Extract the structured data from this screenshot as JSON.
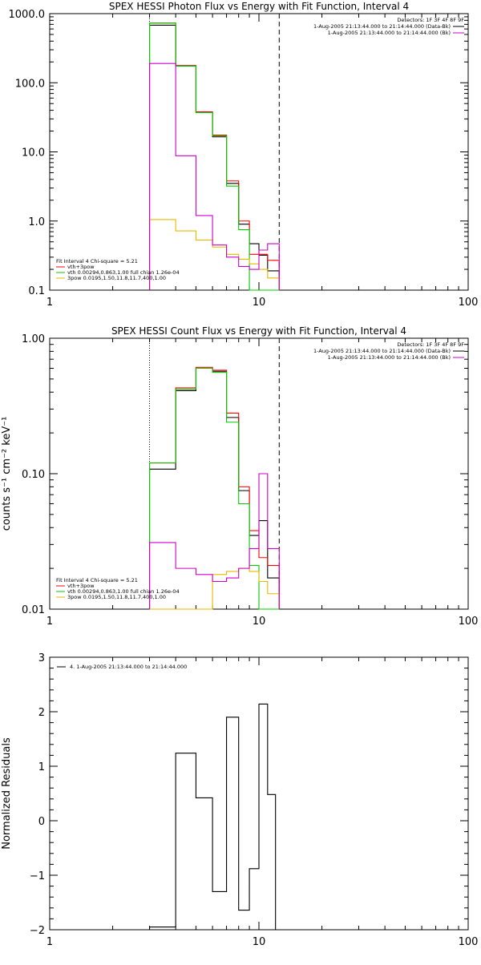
{
  "chart_data": [
    {
      "type": "line",
      "title": "SPEX HESSI Photon Flux vs Energy with Fit Function, Interval 4",
      "xlabel": "",
      "ylabel": "",
      "xscale": "log",
      "yscale": "log",
      "xlim": [
        1,
        100
      ],
      "ylim": [
        0.1,
        1000
      ],
      "xticks": [
        {
          "v": 1,
          "label": "1"
        },
        {
          "v": 10,
          "label": "10"
        },
        {
          "v": 100,
          "label": "100"
        }
      ],
      "yticks": [
        {
          "v": 1000,
          "label": "1000.0"
        },
        {
          "v": 100,
          "label": "100.0"
        },
        {
          "v": 10,
          "label": "10.0"
        },
        {
          "v": 1,
          "label": "1.0"
        },
        {
          "v": 0.1,
          "label": "0.1"
        }
      ],
      "vlines": [
        {
          "x": 3.0,
          "style": "dotted"
        },
        {
          "x": 12.5,
          "style": "dashed"
        }
      ],
      "legend_top": {
        "position": "top-right",
        "header": "Detectors: 1F 3F 4F 8F 9F",
        "entries": [
          {
            "label": "1-Aug-2005 21:13:44.000 to 21:14:44.000 (Data-Bk)",
            "color": "#000000"
          },
          {
            "label": "1-Aug-2005 21:13:44.000 to 21:14:44.000 (Bk)",
            "color": "#cc00cc"
          }
        ]
      },
      "legend_fit": {
        "position": "bottom-left",
        "header": "Fit Interval 4   Chi-square = 5.21",
        "entries": [
          {
            "label": "vth+3pow",
            "color": "#ff0000"
          },
          {
            "label": "vth 0.00294,0.863,1.00   full chian 1.26e-04",
            "color": "#00cc00"
          },
          {
            "label": "3pow 0.0195,1.50,11.8,11.7,400,1.00",
            "color": "#e6b800"
          }
        ]
      },
      "edges": [
        3.0,
        4.0,
        5.0,
        6.0,
        7.0,
        8.0,
        9.0,
        10.0,
        11.0,
        12.5
      ],
      "series": [
        {
          "name": "Data-Bk",
          "color": "#000000",
          "values": [
            680,
            175,
            37,
            16.5,
            3.5,
            0.9,
            0.47,
            0.32,
            0.19
          ]
        },
        {
          "name": "vth+3pow",
          "color": "#ff0000",
          "values": [
            730,
            178,
            38,
            17.5,
            3.8,
            1.0,
            0.33,
            0.33,
            0.27
          ]
        },
        {
          "name": "vth",
          "color": "#00cc00",
          "values": [
            730,
            175,
            37,
            17,
            3.2,
            0.75,
            0.1,
            0.1,
            0.1
          ]
        },
        {
          "name": "3pow",
          "color": "#e6b800",
          "values": [
            1.05,
            0.72,
            0.53,
            0.42,
            0.33,
            0.28,
            0.24,
            0.2,
            0.15
          ]
        },
        {
          "name": "Bk",
          "color": "#cc00cc",
          "values": [
            190,
            8.8,
            1.2,
            0.45,
            0.3,
            0.22,
            0.2,
            0.38,
            0.47
          ]
        }
      ]
    },
    {
      "type": "line",
      "title": "SPEX HESSI Count Flux vs Energy with Fit Function, Interval 4",
      "xlabel": "",
      "ylabel": "counts s⁻¹ cm⁻² keV⁻¹",
      "xscale": "log",
      "yscale": "log",
      "xlim": [
        1,
        100
      ],
      "ylim": [
        0.01,
        1
      ],
      "xticks": [
        {
          "v": 1,
          "label": "1"
        },
        {
          "v": 10,
          "label": "10"
        },
        {
          "v": 100,
          "label": "100"
        }
      ],
      "yticks": [
        {
          "v": 1,
          "label": "1.00"
        },
        {
          "v": 0.1,
          "label": "0.10"
        },
        {
          "v": 0.01,
          "label": "0.01"
        }
      ],
      "vlines": [
        {
          "x": 3.0,
          "style": "dotted"
        },
        {
          "x": 12.5,
          "style": "dashed"
        }
      ],
      "legend_top": {
        "position": "top-right",
        "header": "Detectors: 1F 3F 4F 8F 9F",
        "entries": [
          {
            "label": "1-Aug-2005 21:13:44.000 to 21:14:44.000 (Data-Bk)",
            "color": "#000000"
          },
          {
            "label": "1-Aug-2005 21:13:44.000 to 21:14:44.000 (Bk)",
            "color": "#cc00cc"
          }
        ]
      },
      "legend_fit": {
        "position": "bottom-left",
        "header": "Fit Interval 4   Chi-square = 5.21",
        "entries": [
          {
            "label": "vth+3pow",
            "color": "#ff0000"
          },
          {
            "label": "vth 0.00294,0.863,1.00   full chian 1.26e-04",
            "color": "#00cc00"
          },
          {
            "label": "3pow 0.0195,1.50,11.8,11.7,400,1.00",
            "color": "#e6b800"
          }
        ]
      },
      "edges": [
        3.0,
        4.0,
        5.0,
        6.0,
        7.0,
        8.0,
        9.0,
        10.0,
        11.0,
        12.5
      ],
      "series": [
        {
          "name": "Data-Bk",
          "color": "#000000",
          "values": [
            0.108,
            0.41,
            0.6,
            0.57,
            0.26,
            0.075,
            0.035,
            0.045,
            0.017
          ]
        },
        {
          "name": "vth+3pow",
          "color": "#ff0000",
          "values": [
            0.12,
            0.43,
            0.61,
            0.58,
            0.28,
            0.08,
            0.038,
            0.024,
            0.021
          ]
        },
        {
          "name": "vth",
          "color": "#00cc00",
          "values": [
            0.12,
            0.42,
            0.6,
            0.56,
            0.24,
            0.06,
            0.021,
            0.01,
            0.01
          ]
        },
        {
          "name": "3pow",
          "color": "#e6b800",
          "values": [
            0.01,
            0.01,
            0.01,
            0.018,
            0.019,
            0.02,
            0.019,
            0.016,
            0.013
          ]
        },
        {
          "name": "Bk",
          "color": "#cc00cc",
          "values": [
            0.031,
            0.02,
            0.018,
            0.016,
            0.017,
            0.02,
            0.028,
            0.1,
            0.028
          ]
        }
      ]
    },
    {
      "type": "line",
      "title": "",
      "xlabel": "",
      "ylabel": "Normalized Residuals",
      "xscale": "log",
      "yscale": "linear",
      "xlim": [
        1,
        100
      ],
      "ylim": [
        -2,
        3
      ],
      "xticks": [
        {
          "v": 1,
          "label": "1"
        },
        {
          "v": 10,
          "label": "10"
        },
        {
          "v": 100,
          "label": "100"
        }
      ],
      "yticks": [
        {
          "v": 3,
          "label": "3"
        },
        {
          "v": 2,
          "label": "2"
        },
        {
          "v": 1,
          "label": "1"
        },
        {
          "v": 0,
          "label": "0"
        },
        {
          "v": -1,
          "label": "−1"
        },
        {
          "v": -2,
          "label": "−2"
        }
      ],
      "vlines": [],
      "legend_top": {
        "position": "top-left",
        "header": "",
        "entries": [
          {
            "label": "4. 1-Aug-2005 21:13:44.000 to 21:14:44.000",
            "color": "#000000"
          }
        ]
      },
      "edges": [
        3.0,
        4.0,
        5.0,
        6.0,
        7.0,
        8.0,
        9.0,
        10.0,
        11.0,
        12.0
      ],
      "series": [
        {
          "name": "",
          "color": "#000000",
          "values": [
            -1.95,
            1.24,
            0.42,
            -1.3,
            1.9,
            -1.64,
            -0.88,
            2.14,
            0.48
          ]
        }
      ]
    }
  ]
}
